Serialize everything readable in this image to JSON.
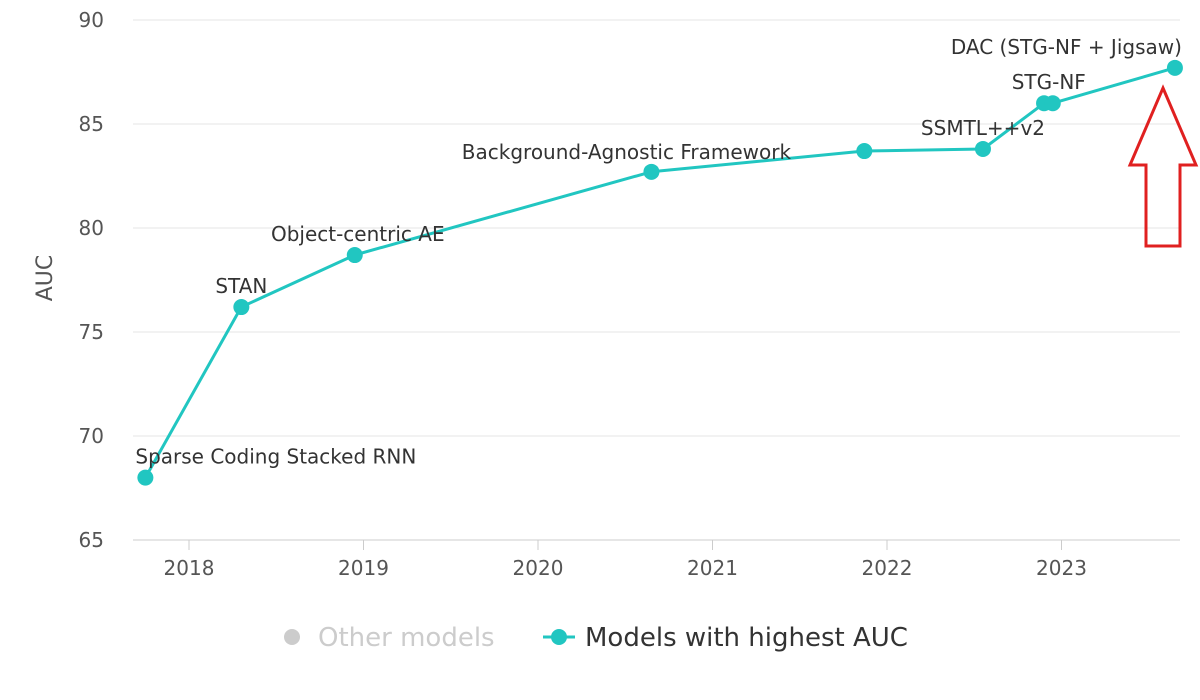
{
  "chart_data": {
    "type": "line",
    "ylabel": "AUC",
    "ylim": [
      65,
      90
    ],
    "y_ticks": [
      "65",
      "70",
      "75",
      "80",
      "85",
      "90"
    ],
    "xlim": [
      2017.7,
      2023.75
    ],
    "x_ticks": [
      "2018",
      "2019",
      "2020",
      "2021",
      "2022",
      "2023"
    ],
    "grid": "horizontal",
    "legend": {
      "placement": "bottom",
      "items": [
        {
          "label": "Other models",
          "color": "#cccccc",
          "active": false
        },
        {
          "label": "Models with highest AUC",
          "color": "#21c6c1",
          "active": true
        }
      ]
    },
    "series": [
      {
        "name": "Models with highest AUC",
        "color": "#21c6c1",
        "points": [
          {
            "x": 2017.75,
            "y": 68.0,
            "label": "Sparse Coding Stacked RNN"
          },
          {
            "x": 2018.3,
            "y": 76.2,
            "label": "STAN"
          },
          {
            "x": 2018.95,
            "y": 78.7,
            "label": "Object-centric AE"
          },
          {
            "x": 2020.65,
            "y": 82.7,
            "label": "Background-Agnostic Framework"
          },
          {
            "x": 2021.87,
            "y": 83.7,
            "label": ""
          },
          {
            "x": 2022.55,
            "y": 83.8,
            "label": "SSMTL++v2"
          },
          {
            "x": 2022.9,
            "y": 86.0,
            "label": ""
          },
          {
            "x": 2022.95,
            "y": 86.0,
            "label": "STG-NF"
          },
          {
            "x": 2023.65,
            "y": 87.7,
            "label": "DAC (STG-NF + Jigsaw)"
          }
        ]
      }
    ],
    "annotation": {
      "type": "arrow-up",
      "color": "#e02020"
    }
  }
}
